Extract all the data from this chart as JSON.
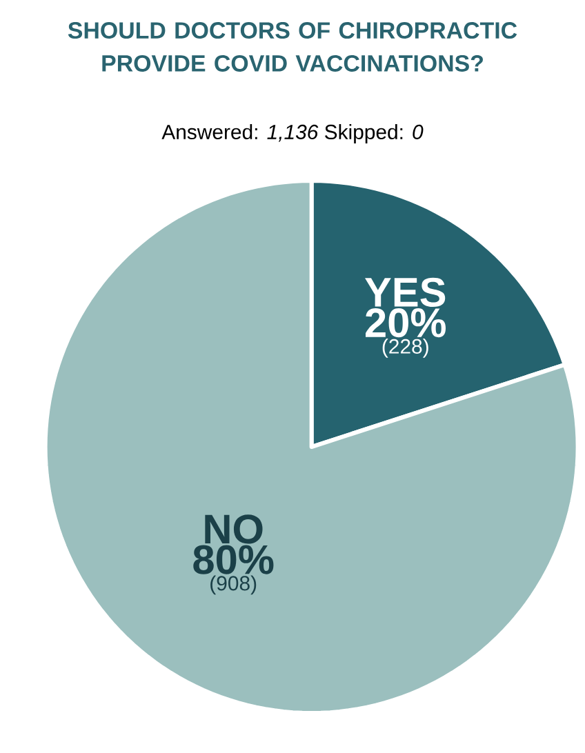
{
  "chart_data": {
    "type": "pie",
    "title": "SHOULD DOCTORS OF CHIROPRACTIC PROVIDE COVID VACCINATIONS?",
    "subtitle": "Answered: *1,136*     Skipped: *0*",
    "categories": [
      "YES",
      "NO"
    ],
    "values": [
      20,
      80
    ],
    "colors": [
      "#25636f",
      "#9bbfbe"
    ],
    "value_labels": [
      "20%",
      "80%"
    ],
    "annotations": [
      "(228)",
      "(908)"
    ]
  }
}
